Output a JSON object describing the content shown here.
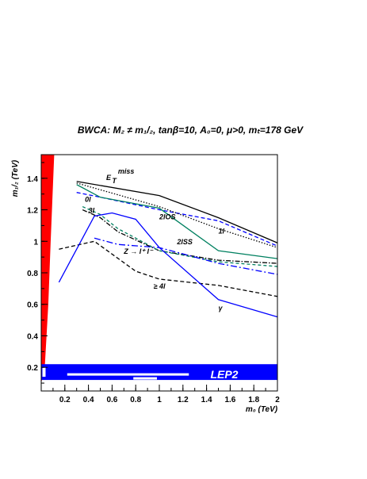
{
  "title": "BWCA: M₂ ≠ m₁/₂, tanβ=10, A₀=0, μ>0, mₜ=178 GeV",
  "chart_data": {
    "type": "line",
    "xlabel": "m₀ (TeV)",
    "ylabel": "m₁/₂ (TeV)",
    "xlim": [
      0,
      2
    ],
    "ylim": [
      0.05,
      1.55
    ],
    "xticks": [
      "0.2",
      "0.4",
      "0.6",
      "0.8",
      "1",
      "1.2",
      "1.4",
      "1.6",
      "1.8",
      "2"
    ],
    "yticks": [
      "0.2",
      "0.4",
      "0.6",
      "0.8",
      "1",
      "1.2",
      "1.4"
    ],
    "excluded_regions": [
      {
        "label": "",
        "color": "#ff0000",
        "x": [
          0.0,
          0.11,
          0.08,
          0.06,
          0.03,
          0.0
        ],
        "y": [
          1.55,
          1.55,
          1.0,
          0.6,
          0.2,
          0.1
        ]
      },
      {
        "label": "LEP2",
        "color": "#0000ff",
        "x_range": [
          0,
          2
        ],
        "y_range": [
          0.12,
          0.22
        ]
      }
    ],
    "series": [
      {
        "name": "E_T^miss",
        "color": "#000000",
        "dash": "",
        "x": [
          0.3,
          1.0,
          1.5,
          2.0
        ],
        "y": [
          1.38,
          1.29,
          1.15,
          0.99
        ]
      },
      {
        "name": "0l",
        "color": "#0000ff",
        "dash": "5,3",
        "x": [
          0.3,
          0.5,
          1.0,
          1.5,
          2.0
        ],
        "y": [
          1.31,
          1.28,
          1.2,
          1.13,
          0.97
        ]
      },
      {
        "name": "1l",
        "color": "#000000",
        "dash": "1.5,2",
        "x": [
          0.3,
          1.0,
          1.5,
          2.0
        ],
        "y": [
          1.37,
          1.22,
          1.08,
          0.96
        ]
      },
      {
        "name": "2lOS",
        "color": "#008060",
        "dash": "",
        "x": [
          0.3,
          0.5,
          1.0,
          1.5,
          2.0
        ],
        "y": [
          1.36,
          1.28,
          1.21,
          0.94,
          0.89
        ]
      },
      {
        "name": "3l",
        "color": "#000000",
        "dash": "6,2,1.5,2",
        "x": [
          0.35,
          0.5,
          0.65,
          1.0,
          1.5,
          2.0
        ],
        "y": [
          1.2,
          1.15,
          1.06,
          0.94,
          0.88,
          0.86
        ]
      },
      {
        "name": "2lSS",
        "color": "#008060",
        "dash": "4,3",
        "x": [
          0.35,
          0.5,
          0.65,
          1.0,
          1.5,
          2.0
        ],
        "y": [
          1.22,
          1.17,
          1.08,
          0.94,
          0.87,
          0.84
        ]
      },
      {
        "name": "Z → l⁺ l⁻",
        "color": "#0000ff",
        "dash": "8,3,2,3",
        "x": [
          0.45,
          0.65,
          1.0,
          1.5,
          2.0
        ],
        "y": [
          1.02,
          0.98,
          0.96,
          0.86,
          0.79
        ]
      },
      {
        "name": "≥ 4l",
        "color": "#000000",
        "dash": "5,3",
        "x": [
          0.15,
          0.45,
          0.8,
          1.0,
          1.5,
          2.0
        ],
        "y": [
          0.95,
          1.0,
          0.81,
          0.76,
          0.72,
          0.65
        ]
      },
      {
        "name": "γ",
        "color": "#0000ff",
        "dash": "",
        "x": [
          0.15,
          0.3,
          0.45,
          0.6,
          0.8,
          1.0,
          1.5,
          2.0
        ],
        "y": [
          0.74,
          0.95,
          1.16,
          1.18,
          1.14,
          0.96,
          0.63,
          0.52
        ]
      }
    ],
    "annotations": [
      {
        "text": "E",
        "x": 0.55,
        "y": 1.39
      },
      {
        "text": "T",
        "x": 0.6,
        "y": 1.37
      },
      {
        "text": "miss",
        "x": 0.65,
        "y": 1.43
      },
      {
        "text": "0l",
        "x": 0.37,
        "y": 1.25
      },
      {
        "text": "3l",
        "x": 0.4,
        "y": 1.18
      },
      {
        "text": "2lOS",
        "x": 1.0,
        "y": 1.14
      },
      {
        "text": "1l",
        "x": 1.5,
        "y": 1.05
      },
      {
        "text": "2lSS",
        "x": 1.15,
        "y": 0.98
      },
      {
        "text": "Z → l⁺ l⁻",
        "x": 0.7,
        "y": 0.92
      },
      {
        "text": "≥ 4l",
        "x": 0.95,
        "y": 0.7
      },
      {
        "text": "γ",
        "x": 1.5,
        "y": 0.56
      }
    ]
  }
}
